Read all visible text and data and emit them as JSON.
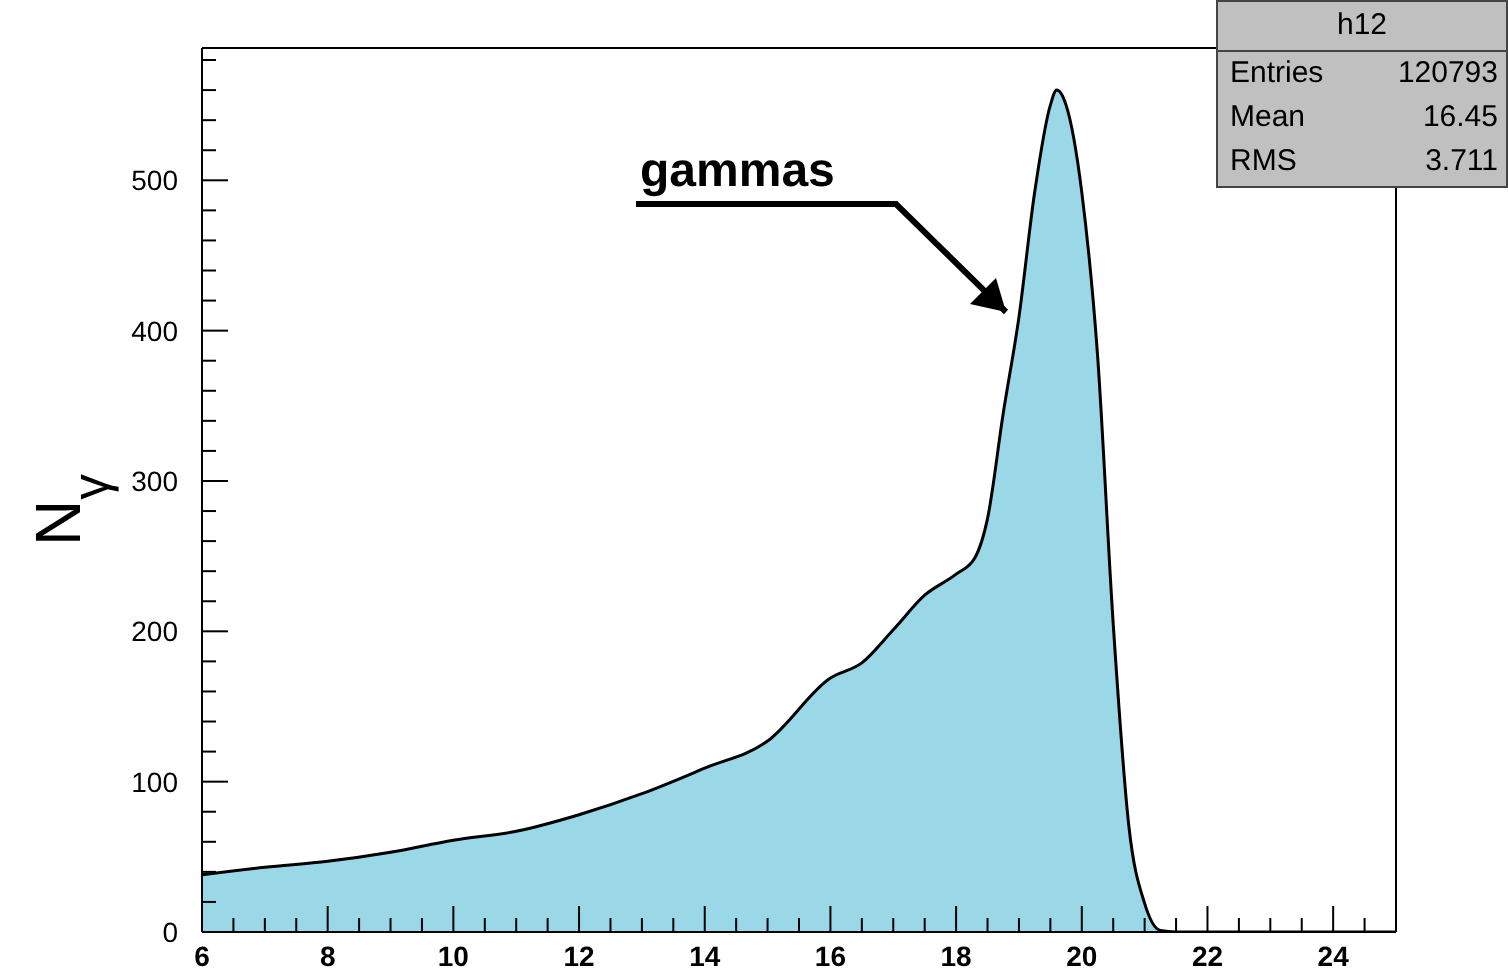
{
  "chart_data": {
    "type": "area",
    "ylabel": "N$_{γ}$",
    "x": [
      6,
      7,
      8,
      9,
      10,
      11,
      12,
      13,
      14,
      15,
      16,
      16.5,
      17,
      17.5,
      18,
      18.3,
      18.5,
      18.75,
      19,
      19.25,
      19.5,
      19.6,
      19.75,
      20,
      20.25,
      20.5,
      20.75,
      21,
      21.25,
      21.5,
      22,
      25
    ],
    "series": [
      {
        "color": "#9ad8e8",
        "values": [
          38,
          43,
          47,
          53,
          61,
          67,
          78,
          92,
          109,
          127,
          169,
          179,
          201,
          224,
          238,
          249,
          275,
          345,
          409,
          492,
          550,
          560,
          550,
          492,
          384,
          205,
          70,
          19,
          1,
          0,
          0,
          0
        ]
      }
    ],
    "xlim": [
      6,
      25
    ],
    "xticks": [
      6,
      {
        "value": 6.5,
        "label": null
      },
      {
        "value": 7,
        "label": null
      },
      {
        "value": 7.5,
        "label": null
      },
      8,
      {
        "value": 8.5,
        "label": null
      },
      {
        "value": 9,
        "label": null
      },
      {
        "value": 9.5,
        "label": null
      },
      10,
      {
        "value": 10.5,
        "label": null
      },
      {
        "value": 11,
        "label": null
      },
      {
        "value": 11.5,
        "label": null
      },
      12,
      {
        "value": 12.5,
        "label": null
      },
      {
        "value": 13,
        "label": null
      },
      {
        "value": 13.5,
        "label": null
      },
      14,
      {
        "value": 14.5,
        "label": null
      },
      {
        "value": 15,
        "label": null
      },
      {
        "value": 15.5,
        "label": null
      },
      16,
      {
        "value": 16.5,
        "label": null
      },
      {
        "value": 17,
        "label": null
      },
      {
        "value": 17.5,
        "label": null
      },
      18,
      {
        "value": 18.5,
        "label": null
      },
      {
        "value": 19,
        "label": null
      },
      {
        "value": 19.5,
        "label": null
      },
      20,
      {
        "value": 20.5,
        "label": null
      },
      {
        "value": 21,
        "label": null
      },
      {
        "value": 21.5,
        "label": null
      },
      22,
      {
        "value": 22.5,
        "label": null
      },
      {
        "value": 23,
        "label": null
      },
      {
        "value": 23.5,
        "label": null
      },
      24,
      {
        "value": 24.5,
        "label": null
      }
    ],
    "ylim": [
      0,
      588
    ],
    "yticks": [
      0,
      {
        "value": 20,
        "label": null
      },
      {
        "value": 40,
        "label": null
      },
      {
        "value": 60,
        "label": null
      },
      {
        "value": 80,
        "label": null
      },
      100,
      {
        "value": 120,
        "label": null
      },
      {
        "value": 140,
        "label": null
      },
      {
        "value": 160,
        "label": null
      },
      {
        "value": 180,
        "label": null
      },
      200,
      {
        "value": 220,
        "label": null
      },
      {
        "value": 240,
        "label": null
      },
      {
        "value": 260,
        "label": null
      },
      {
        "value": 280,
        "label": null
      },
      300,
      {
        "value": 320,
        "label": null
      },
      {
        "value": 340,
        "label": null
      },
      {
        "value": 360,
        "label": null
      },
      {
        "value": 380,
        "label": null
      },
      400,
      {
        "value": 420,
        "label": null
      },
      {
        "value": 440,
        "label": null
      },
      {
        "value": 460,
        "label": null
      },
      {
        "value": 480,
        "label": null
      },
      500,
      {
        "value": 520,
        "label": null
      },
      {
        "value": 540,
        "label": null
      },
      {
        "value": 560,
        "label": null
      },
      {
        "value": 580,
        "label": null
      }
    ],
    "annotations": [
      "gammas",
      "h12",
      "Entries",
      "120793",
      "Mean",
      "16.45",
      "RMS",
      "3.711"
    ]
  }
}
